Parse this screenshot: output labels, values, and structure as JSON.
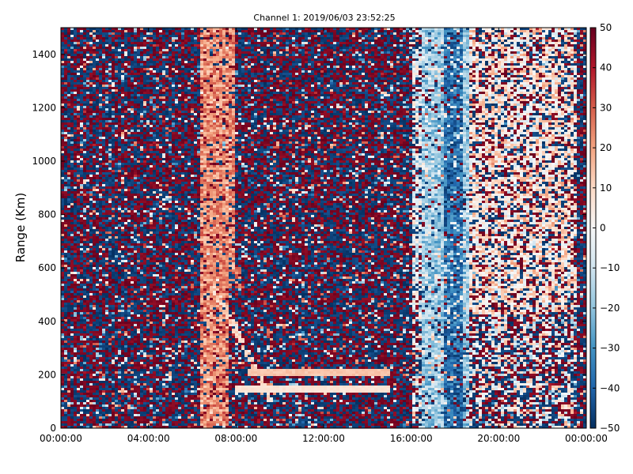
{
  "chart_data": {
    "type": "heatmap",
    "title": "Channel 1: 2019/06/03 23:52:25",
    "xlabel": "",
    "ylabel": "Range (Km)",
    "x_tick_labels": [
      "00:00:00",
      "04:00:00",
      "08:00:00",
      "12:00:00",
      "16:00:00",
      "20:00:00",
      "00:00:00"
    ],
    "x_range_hours": [
      0,
      24
    ],
    "y_ticks": [
      0,
      200,
      400,
      600,
      800,
      1000,
      1200,
      1400
    ],
    "ylim": [
      0,
      1500
    ],
    "colorbar": {
      "colormap": "RdBu_r",
      "range": [
        -50,
        50
      ],
      "tick_labels": [
        "50",
        "40",
        "30",
        "20",
        "10",
        "0",
        "−10",
        "−20",
        "−30",
        "−40",
        "−50"
      ],
      "tick_values": [
        50,
        40,
        30,
        20,
        10,
        0,
        -10,
        -20,
        -30,
        -40,
        -50
      ]
    },
    "features": {
      "noise_background": "random values near ±50 across the whole field",
      "positive_band_hours": [
        6.4,
        8.0
      ],
      "negative_band_hours": [
        16.5,
        18.6
      ],
      "light_region_hours": [
        16.0,
        23.5
      ],
      "streaks": [
        {
          "hours": [
            8.0,
            15.0
          ],
          "range": 150,
          "value": 5
        },
        {
          "hours": [
            8.5,
            15.0
          ],
          "range": 210,
          "value": 12
        }
      ]
    }
  }
}
